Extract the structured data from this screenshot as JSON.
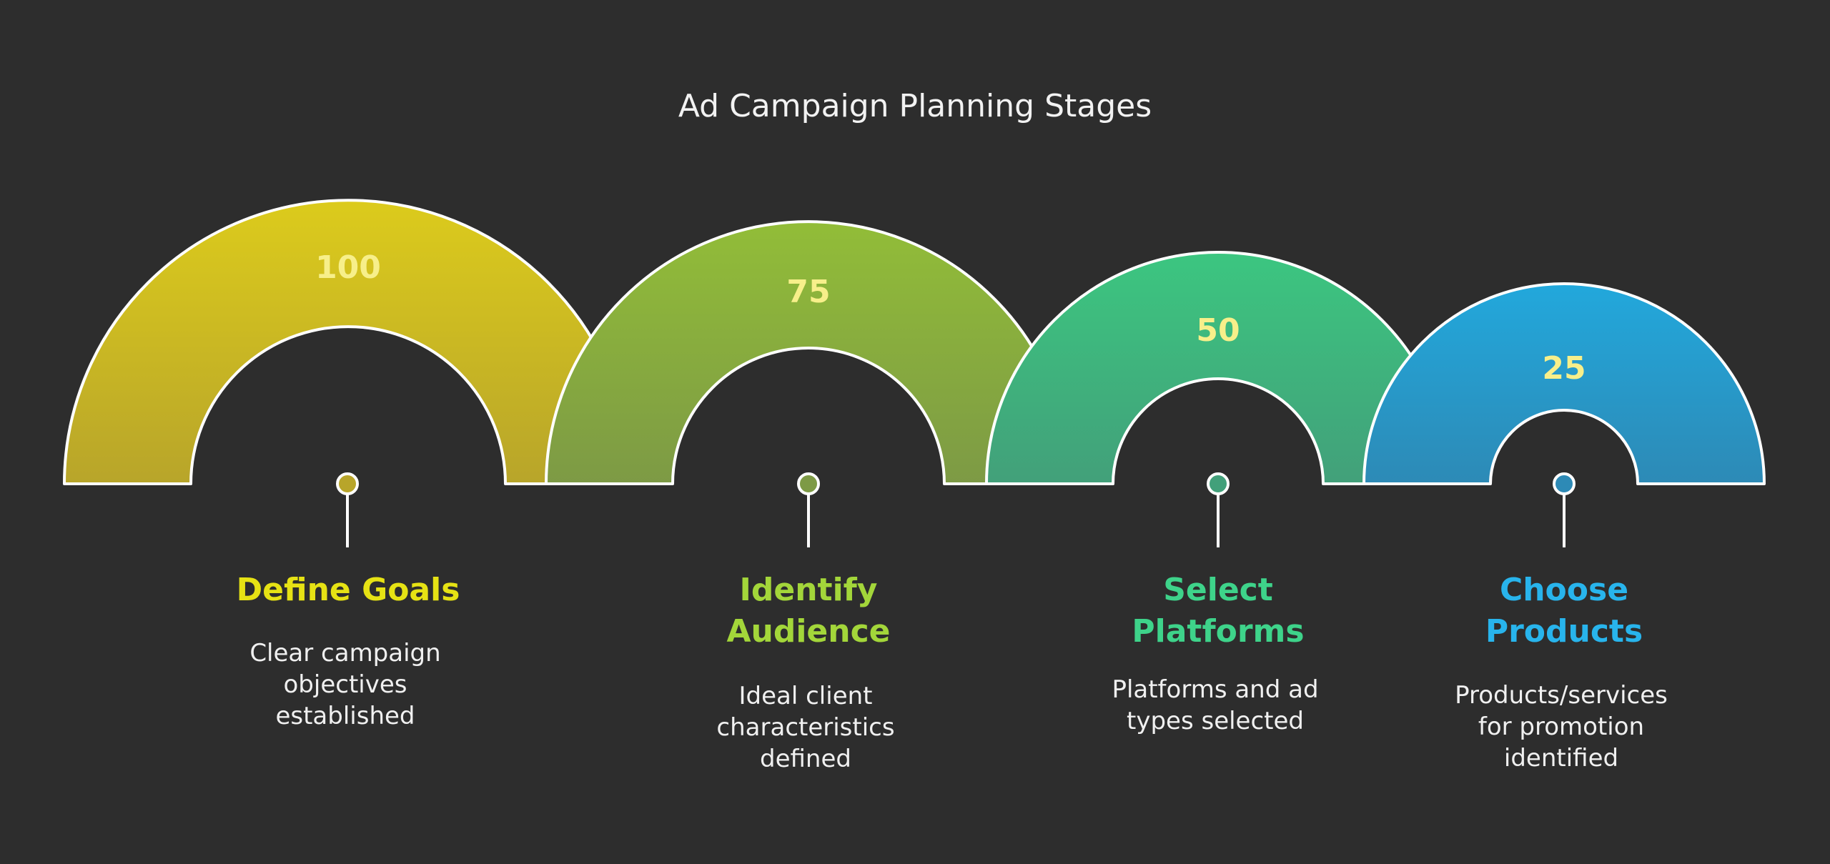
{
  "title": "Ad Campaign Planning Stages",
  "stages": [
    {
      "value": "100",
      "label": [
        "Define Goals"
      ],
      "description": [
        "Clear campaign",
        "objectives",
        "established"
      ],
      "color": "#e6e214",
      "fill_top": "#dccb1c",
      "fill_bottom": "#b8a52a"
    },
    {
      "value": "75",
      "label": [
        "Identify",
        "Audience"
      ],
      "description": [
        "Ideal client",
        "characteristics",
        "defined"
      ],
      "color": "#a3d63a",
      "fill_top": "#92bd38",
      "fill_bottom": "#7d9a45"
    },
    {
      "value": "50",
      "label": [
        "Select",
        "Platforms"
      ],
      "description": [
        "Platforms and ad",
        "types selected"
      ],
      "color": "#3ed38a",
      "fill_top": "#3cc680",
      "fill_bottom": "#42a07a"
    },
    {
      "value": "25",
      "label": [
        "Choose",
        "Products"
      ],
      "description": [
        "Products/services",
        "for promotion",
        "identified"
      ],
      "color": "#28b4ec",
      "fill_top": "#22a8dc",
      "fill_bottom": "#2d8ab6"
    }
  ]
}
